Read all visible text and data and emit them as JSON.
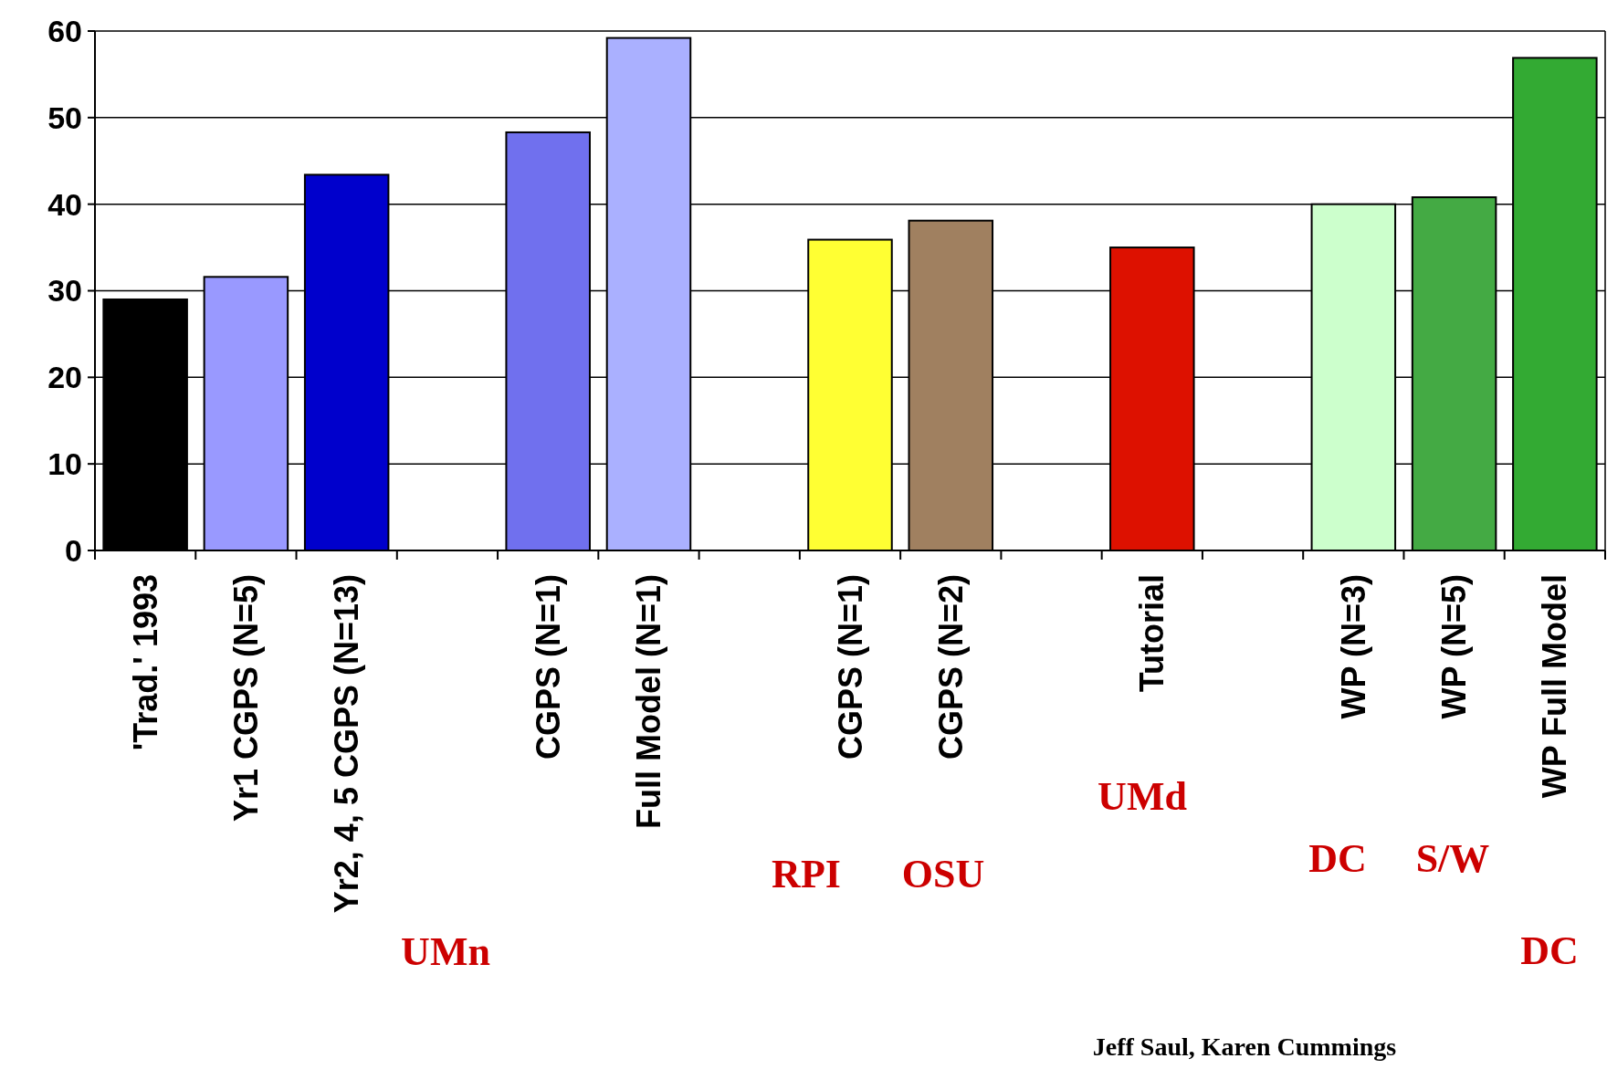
{
  "chart_data": {
    "type": "bar",
    "categories": [
      "'Trad.' 1993",
      "Yr1 CGPS (N=5)",
      "Yr2, 4, 5 CGPS (N=13)",
      null,
      "CGPS (N=1)",
      "Full Model (N=1)",
      null,
      "CGPS (N=1)",
      "CGPS (N=2)",
      null,
      "Tutorial",
      null,
      "WP (N=3)",
      "WP (N=5)",
      "WP Full Model"
    ],
    "values": [
      29,
      31.6,
      43.4,
      null,
      48.3,
      59.2,
      null,
      35.9,
      38.1,
      null,
      35,
      null,
      40,
      40.8,
      56.9
    ],
    "colors": [
      "#000000",
      "#9999ff",
      "#0000cc",
      null,
      "#7070ee",
      "#aab0ff",
      null,
      "#ffff33",
      "#a08060",
      null,
      "#dd1100",
      null,
      "#ccffcc",
      "#44aa44",
      "#33aa33"
    ],
    "ylim": [
      0,
      60
    ],
    "yticks": [
      0,
      10,
      20,
      30,
      40,
      50,
      60
    ],
    "grid": "y",
    "annotations": [
      "UMn",
      "RPI",
      "OSU",
      "UMd",
      "DC",
      "S/W",
      "DC",
      "Jeff Saul, Karen Cummings"
    ]
  }
}
